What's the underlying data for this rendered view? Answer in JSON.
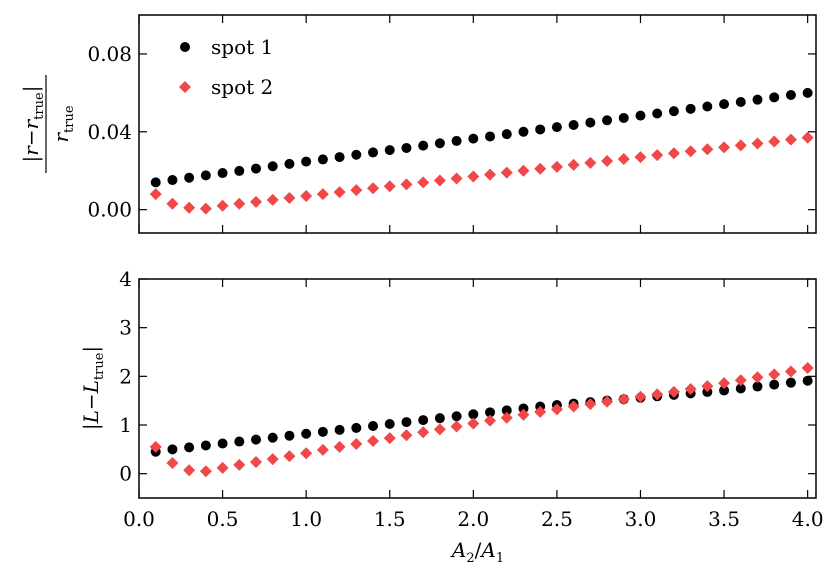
{
  "chart_data": [
    {
      "type": "scatter",
      "panel": "top",
      "ylabel": {
        "num_left": "|",
        "num_r1": "r",
        "num_minus": "−",
        "num_r2": "r",
        "num_sub": "true",
        "num_right": "|",
        "den_r": "r",
        "den_sub": "true"
      },
      "xlim": [
        0.0,
        4.05
      ],
      "ylim": [
        -0.012,
        0.1
      ],
      "yticks": [
        0.0,
        0.04,
        0.08
      ],
      "ytick_labels": [
        "0.00",
        "0.04",
        "0.08"
      ],
      "legend": {
        "position": "top-left",
        "entries": [
          "spot 1",
          "spot 2"
        ]
      },
      "x": [
        0.1,
        0.2,
        0.3,
        0.4,
        0.5,
        0.6,
        0.7,
        0.8,
        0.9,
        1.0,
        1.1,
        1.2,
        1.3,
        1.4,
        1.5,
        1.6,
        1.7,
        1.8,
        1.9,
        2.0,
        2.1,
        2.2,
        2.3,
        2.4,
        2.5,
        2.6,
        2.7,
        2.8,
        2.9,
        3.0,
        3.1,
        3.2,
        3.3,
        3.4,
        3.5,
        3.6,
        3.7,
        3.8,
        3.9,
        4.0
      ],
      "series": [
        {
          "name": "spot 1",
          "marker": "circle",
          "color": "#000000",
          "values": [
            0.014,
            0.0152,
            0.0164,
            0.0176,
            0.0188,
            0.0199,
            0.0211,
            0.0223,
            0.0235,
            0.0247,
            0.0258,
            0.027,
            0.0282,
            0.0294,
            0.0306,
            0.0317,
            0.0329,
            0.0341,
            0.0353,
            0.0365,
            0.0376,
            0.0388,
            0.04,
            0.0412,
            0.0424,
            0.0435,
            0.0447,
            0.0459,
            0.0471,
            0.0483,
            0.0494,
            0.0506,
            0.0518,
            0.053,
            0.0542,
            0.0553,
            0.0565,
            0.0577,
            0.0589,
            0.06
          ]
        },
        {
          "name": "spot 2",
          "marker": "diamond",
          "color": "#f04848",
          "values": [
            0.008,
            0.003,
            0.001,
            0.0005,
            0.002,
            0.003,
            0.004,
            0.005,
            0.006,
            0.007,
            0.008,
            0.009,
            0.01,
            0.011,
            0.012,
            0.013,
            0.014,
            0.015,
            0.016,
            0.017,
            0.018,
            0.019,
            0.02,
            0.021,
            0.022,
            0.023,
            0.024,
            0.025,
            0.026,
            0.027,
            0.028,
            0.029,
            0.03,
            0.031,
            0.032,
            0.033,
            0.034,
            0.035,
            0.036,
            0.037
          ]
        }
      ]
    },
    {
      "type": "scatter",
      "panel": "bottom",
      "ylabel": {
        "left_bar": "|",
        "L1": "L",
        "minus": "−",
        "L2": "L",
        "sub": "true",
        "right_bar": "|"
      },
      "xlabel": {
        "A2": "A",
        "sub2": "2",
        "slash": "/",
        "A1": "A",
        "sub1": "1"
      },
      "xlim": [
        0.0,
        4.05
      ],
      "ylim": [
        -0.5,
        4.0
      ],
      "yticks": [
        0,
        1,
        2,
        3,
        4
      ],
      "ytick_labels": [
        "0",
        "1",
        "2",
        "3",
        "4"
      ],
      "xticks": [
        0.0,
        0.5,
        1.0,
        1.5,
        2.0,
        2.5,
        3.0,
        3.5,
        4.0
      ],
      "xtick_labels": [
        "0.0",
        "0.5",
        "1.0",
        "1.5",
        "2.0",
        "2.5",
        "3.0",
        "3.5",
        "4.0"
      ],
      "x": [
        0.1,
        0.2,
        0.3,
        0.4,
        0.5,
        0.6,
        0.7,
        0.8,
        0.9,
        1.0,
        1.1,
        1.2,
        1.3,
        1.4,
        1.5,
        1.6,
        1.7,
        1.8,
        1.9,
        2.0,
        2.1,
        2.2,
        2.3,
        2.4,
        2.5,
        2.6,
        2.7,
        2.8,
        2.9,
        3.0,
        3.1,
        3.2,
        3.3,
        3.4,
        3.5,
        3.6,
        3.7,
        3.8,
        3.9,
        4.0
      ],
      "series": [
        {
          "name": "spot 1",
          "marker": "circle",
          "color": "#000000",
          "values": [
            0.45,
            0.5,
            0.54,
            0.58,
            0.62,
            0.66,
            0.7,
            0.74,
            0.78,
            0.82,
            0.86,
            0.9,
            0.94,
            0.98,
            1.02,
            1.06,
            1.1,
            1.14,
            1.18,
            1.22,
            1.26,
            1.3,
            1.34,
            1.38,
            1.41,
            1.44,
            1.47,
            1.5,
            1.53,
            1.56,
            1.59,
            1.62,
            1.65,
            1.68,
            1.71,
            1.75,
            1.79,
            1.83,
            1.87,
            1.91
          ]
        },
        {
          "name": "spot 2",
          "marker": "diamond",
          "color": "#f04848",
          "values": [
            0.55,
            0.22,
            0.07,
            0.05,
            0.12,
            0.18,
            0.24,
            0.3,
            0.36,
            0.42,
            0.49,
            0.55,
            0.61,
            0.67,
            0.73,
            0.79,
            0.85,
            0.91,
            0.97,
            1.03,
            1.09,
            1.15,
            1.21,
            1.27,
            1.32,
            1.38,
            1.43,
            1.48,
            1.53,
            1.58,
            1.63,
            1.68,
            1.74,
            1.8,
            1.86,
            1.92,
            1.98,
            2.04,
            2.1,
            2.17
          ]
        }
      ]
    }
  ]
}
